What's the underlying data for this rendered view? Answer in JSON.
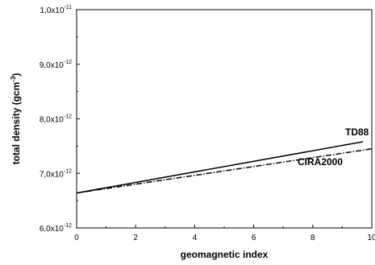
{
  "chart_data": {
    "type": "line",
    "title": "",
    "xlabel": "geomagnetic index",
    "ylabel_base": "total density (gcm",
    "ylabel_sup": "-3",
    "ylabel_close": ")",
    "xlim": [
      0,
      10
    ],
    "ylim": [
      6e-12,
      1e-11
    ],
    "x_ticks": [
      {
        "value": 0,
        "label": "0"
      },
      {
        "value": 2,
        "label": "2"
      },
      {
        "value": 4,
        "label": "4"
      },
      {
        "value": 6,
        "label": "6"
      },
      {
        "value": 8,
        "label": "8"
      },
      {
        "value": 10,
        "label": "10"
      }
    ],
    "y_ticks": [
      {
        "value": 6e-12,
        "mantissa": "6,0x10",
        "exponent": "-12"
      },
      {
        "value": 7e-12,
        "mantissa": "7,0x10",
        "exponent": "-12"
      },
      {
        "value": 8e-12,
        "mantissa": "8,0x10",
        "exponent": "-12"
      },
      {
        "value": 9e-12,
        "mantissa": "9,0x10",
        "exponent": "-12"
      },
      {
        "value": 1e-11,
        "mantissa": "1,0x10",
        "exponent": "-11"
      }
    ],
    "grid": false,
    "series": [
      {
        "name": "TD88",
        "style": "solid",
        "x": [
          0,
          9.7
        ],
        "y": [
          6.64e-12,
          7.58e-12
        ]
      },
      {
        "name": "CIRA2000",
        "style": "dash-dot",
        "x": [
          0,
          10.0
        ],
        "y": [
          6.64e-12,
          7.45e-12
        ]
      }
    ]
  }
}
